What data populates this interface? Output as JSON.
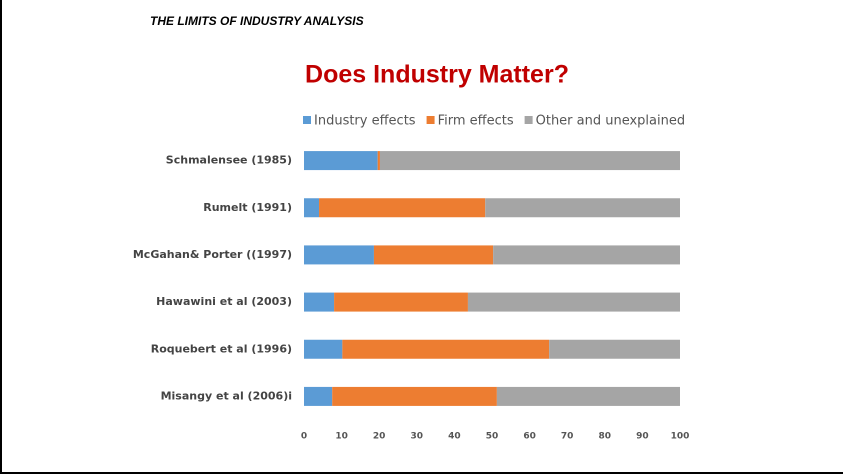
{
  "header": "THE LIMITS OF INDUSTRY ANALYSIS",
  "chart_data": {
    "type": "stacked-barh",
    "title": "Does Industry Matter?",
    "categories": [
      "Schmalensee (1985)",
      "Rumelt (1991)",
      "McGahan& Porter ((1997)",
      "Hawawini et al (2003)",
      "Roquebert et al (1996)",
      "Misangy et al (2006)i"
    ],
    "series": [
      {
        "name": "Industry effects",
        "color": "#5b9bd5",
        "values": [
          19.6,
          4,
          18.6,
          8,
          10.2,
          7.5
        ]
      },
      {
        "name": "Firm effects",
        "color": "#ed7d31",
        "values": [
          0.6,
          44.2,
          31.7,
          35.6,
          55,
          43.8
        ]
      },
      {
        "name": "Other and unexplained",
        "color": "#a5a5a5",
        "values": [
          79.8,
          51.8,
          49.7,
          56.4,
          34.8,
          48.7
        ]
      }
    ],
    "xlim": [
      0,
      100
    ],
    "xticks": [
      0,
      10,
      20,
      30,
      40,
      50,
      60,
      70,
      80,
      90,
      100
    ],
    "legend": "top"
  }
}
